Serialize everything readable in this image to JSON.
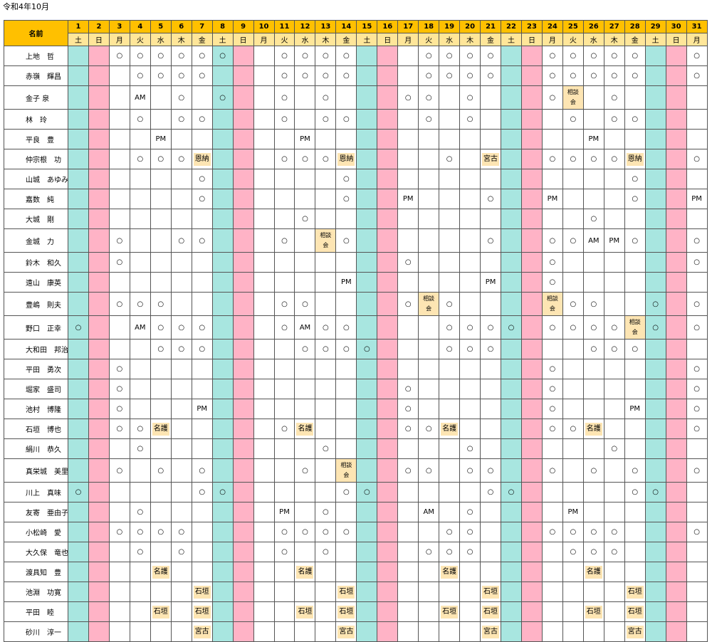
{
  "title": "令和4年10月",
  "header": {
    "name_label": "名前"
  },
  "days": [
    "1",
    "2",
    "3",
    "4",
    "5",
    "6",
    "7",
    "8",
    "9",
    "10",
    "11",
    "12",
    "13",
    "14",
    "15",
    "16",
    "17",
    "18",
    "19",
    "20",
    "21",
    "22",
    "23",
    "24",
    "25",
    "26",
    "27",
    "28",
    "29",
    "30",
    "31"
  ],
  "weekdays": [
    "土",
    "日",
    "月",
    "火",
    "水",
    "木",
    "金",
    "土",
    "日",
    "月",
    "火",
    "水",
    "木",
    "金",
    "土",
    "日",
    "月",
    "火",
    "水",
    "木",
    "金",
    "土",
    "日",
    "月",
    "火",
    "水",
    "木",
    "金",
    "土",
    "日",
    "月"
  ],
  "colors": {
    "saturday": "#a8e6e0",
    "sunday": "#ffb3c6",
    "header_day": "#ffc000",
    "header_dow": "#ffe699",
    "header_name": "#9dc3e6",
    "badge": "#fde5b3"
  },
  "rows": [
    {
      "name": "上地　哲",
      "cells": [
        "",
        "",
        "○",
        "○",
        "○",
        "○",
        "○",
        "○",
        "",
        "",
        "○",
        "○",
        "○",
        "○",
        "",
        "",
        "",
        "○",
        "○",
        "○",
        "○",
        "",
        "",
        "○",
        "○",
        "○",
        "○",
        "○",
        "",
        "",
        "○"
      ]
    },
    {
      "name": "赤嶺　輝昌",
      "cells": [
        "",
        "",
        "",
        "○",
        "○",
        "○",
        "○",
        "",
        "",
        "",
        "○",
        "○",
        "○",
        "○",
        "",
        "",
        "",
        "○",
        "○",
        "○",
        "○",
        "",
        "",
        "○",
        "○",
        "○",
        "○",
        "○",
        "",
        "",
        "○"
      ]
    },
    {
      "name": "金子 泉",
      "cells": [
        "",
        "",
        "",
        "AM",
        "",
        "○",
        "",
        "○",
        "",
        "",
        "○",
        "",
        "○",
        "",
        "",
        "",
        "○",
        "○",
        "",
        "○",
        "",
        "",
        "",
        "○",
        "相談会",
        "",
        "○",
        "",
        "",
        "",
        ""
      ]
    },
    {
      "name": "林　玲",
      "cells": [
        "",
        "",
        "",
        "○",
        "",
        "○",
        "○",
        "",
        "",
        "",
        "○",
        "",
        "○",
        "○",
        "",
        "",
        "",
        "○",
        "",
        "○",
        "",
        "",
        "",
        "",
        "○",
        "",
        "○",
        "○",
        "",
        "",
        ""
      ]
    },
    {
      "name": "平良　豊",
      "cells": [
        "",
        "",
        "",
        "",
        "PM",
        "",
        "",
        "",
        "",
        "",
        "",
        "PM",
        "",
        "",
        "",
        "",
        "",
        "",
        "",
        "",
        "",
        "",
        "",
        "",
        "",
        "PM",
        "",
        "",
        "",
        "",
        ""
      ]
    },
    {
      "name": "仲宗根　功",
      "cells": [
        "",
        "",
        "",
        "○",
        "○",
        "○",
        "恩納",
        "",
        "",
        "",
        "○",
        "○",
        "○",
        "恩納",
        "",
        "",
        "",
        "",
        "○",
        "",
        "宮古",
        "",
        "",
        "○",
        "○",
        "○",
        "○",
        "恩納",
        "",
        "",
        "○"
      ]
    },
    {
      "name": "山城　あゆみ",
      "cells": [
        "",
        "",
        "",
        "",
        "",
        "",
        "○",
        "",
        "",
        "",
        "",
        "",
        "",
        "○",
        "",
        "",
        "",
        "",
        "",
        "",
        "",
        "",
        "",
        "",
        "",
        "",
        "",
        "○",
        "",
        "",
        ""
      ]
    },
    {
      "name": "嘉数　純",
      "cells": [
        "",
        "",
        "",
        "",
        "",
        "",
        "○",
        "",
        "",
        "",
        "",
        "",
        "",
        "○",
        "",
        "",
        "PM",
        "",
        "",
        "",
        "○",
        "",
        "",
        "PM",
        "",
        "",
        "",
        "○",
        "",
        "",
        "PM"
      ]
    },
    {
      "name": "大城　剛",
      "cells": [
        "",
        "",
        "",
        "",
        "",
        "",
        "",
        "",
        "",
        "",
        "",
        "○",
        "",
        "",
        "",
        "",
        "",
        "",
        "",
        "",
        "",
        "",
        "",
        "",
        "",
        "○",
        "",
        "",
        "",
        "",
        ""
      ]
    },
    {
      "name": "金城　力",
      "cells": [
        "",
        "",
        "○",
        "",
        "",
        "○",
        "○",
        "",
        "",
        "",
        "○",
        "",
        "相談会",
        "○",
        "",
        "",
        "",
        "",
        "",
        "",
        "○",
        "",
        "",
        "○",
        "○",
        "AM",
        "PM",
        "○",
        "",
        "",
        "○"
      ]
    },
    {
      "name": "鈴木　和久",
      "cells": [
        "",
        "",
        "○",
        "",
        "",
        "",
        "",
        "",
        "",
        "",
        "",
        "",
        "",
        "",
        "",
        "",
        "○",
        "",
        "",
        "",
        "",
        "",
        "",
        "○",
        "",
        "",
        "",
        "",
        "",
        "",
        "○"
      ]
    },
    {
      "name": "遠山　康英",
      "cells": [
        "",
        "",
        "",
        "",
        "",
        "",
        "",
        "",
        "",
        "",
        "",
        "",
        "",
        "PM",
        "",
        "",
        "",
        "",
        "",
        "",
        "PM",
        "",
        "",
        "○",
        "",
        "",
        "",
        "",
        "",
        "",
        ""
      ]
    },
    {
      "name": "豊嶋　則夫",
      "cells": [
        "",
        "",
        "○",
        "○",
        "○",
        "",
        "",
        "",
        "",
        "",
        "○",
        "○",
        "",
        "",
        "",
        "",
        "○",
        "相談会",
        "○",
        "",
        "",
        "",
        "",
        "相談会",
        "○",
        "○",
        "",
        "",
        "○",
        "",
        "○"
      ]
    },
    {
      "name": "野口　正幸",
      "cells": [
        "○",
        "",
        "",
        "AM",
        "○",
        "○",
        "○",
        "",
        "",
        "",
        "○",
        "AM",
        "○",
        "○",
        "",
        "",
        "",
        "",
        "○",
        "○",
        "○",
        "○",
        "",
        "○",
        "○",
        "○",
        "○",
        "相談会",
        "○",
        "",
        "○"
      ]
    },
    {
      "name": "大和田　邦治",
      "cells": [
        "",
        "",
        "",
        "",
        "○",
        "○",
        "○",
        "",
        "",
        "",
        "",
        "○",
        "○",
        "○",
        "○",
        "",
        "",
        "",
        "○",
        "○",
        "○",
        "",
        "",
        "",
        "",
        "○",
        "○",
        "○",
        "",
        "",
        ""
      ]
    },
    {
      "name": "平田　勇次",
      "cells": [
        "",
        "",
        "○",
        "",
        "",
        "",
        "",
        "",
        "",
        "",
        "",
        "",
        "",
        "",
        "",
        "",
        "",
        "",
        "",
        "",
        "",
        "",
        "",
        "○",
        "",
        "",
        "",
        "",
        "",
        "",
        "○"
      ]
    },
    {
      "name": "堀家　盛司",
      "cells": [
        "",
        "",
        "○",
        "",
        "",
        "",
        "",
        "",
        "",
        "",
        "",
        "",
        "",
        "",
        "",
        "",
        "○",
        "",
        "",
        "",
        "",
        "",
        "",
        "○",
        "",
        "",
        "",
        "",
        "",
        "",
        "○"
      ]
    },
    {
      "name": "池村　博隆",
      "cells": [
        "",
        "",
        "○",
        "",
        "",
        "",
        "PM",
        "",
        "",
        "",
        "",
        "",
        "",
        "",
        "",
        "",
        "○",
        "",
        "",
        "",
        "",
        "",
        "",
        "○",
        "",
        "",
        "",
        "PM",
        "",
        "",
        "○"
      ]
    },
    {
      "name": "石垣　博也",
      "cells": [
        "",
        "",
        "○",
        "○",
        "名護",
        "",
        "",
        "",
        "",
        "",
        "○",
        "名護",
        "",
        "",
        "",
        "",
        "○",
        "○",
        "名護",
        "",
        "",
        "",
        "",
        "○",
        "○",
        "名護",
        "",
        "",
        "",
        "",
        "○"
      ]
    },
    {
      "name": "絹川　恭久",
      "cells": [
        "",
        "",
        "",
        "○",
        "",
        "",
        "",
        "",
        "",
        "",
        "",
        "",
        "○",
        "",
        "",
        "",
        "",
        "",
        "",
        "○",
        "",
        "",
        "",
        "",
        "",
        "",
        "○",
        "",
        "",
        "",
        ""
      ]
    },
    {
      "name": "真栄城　美里",
      "cells": [
        "",
        "",
        "○",
        "",
        "○",
        "",
        "○",
        "",
        "",
        "",
        "",
        "○",
        "",
        "相談会",
        "",
        "",
        "○",
        "○",
        "",
        "○",
        "○",
        "",
        "",
        "○",
        "",
        "○",
        "",
        "○",
        "",
        "",
        "○"
      ]
    },
    {
      "name": "川上　真味",
      "cells": [
        "○",
        "",
        "",
        "",
        "",
        "",
        "○",
        "○",
        "",
        "",
        "",
        "",
        "",
        "○",
        "○",
        "",
        "",
        "",
        "",
        "",
        "○",
        "○",
        "",
        "",
        "",
        "",
        "",
        "○",
        "○",
        "",
        ""
      ]
    },
    {
      "name": "友寄　亜由子",
      "cells": [
        "",
        "",
        "",
        "○",
        "",
        "",
        "",
        "",
        "",
        "",
        "PM",
        "",
        "○",
        "",
        "",
        "",
        "",
        "AM",
        "",
        "○",
        "",
        "",
        "",
        "",
        "PM",
        "",
        "",
        "",
        "",
        "",
        ""
      ]
    },
    {
      "name": "小松崎　愛",
      "cells": [
        "",
        "",
        "○",
        "○",
        "○",
        "○",
        "",
        "",
        "",
        "",
        "○",
        "○",
        "○",
        "○",
        "",
        "",
        "",
        "",
        "○",
        "○",
        "",
        "",
        "",
        "○",
        "○",
        "○",
        "○",
        "",
        "",
        "",
        "○"
      ]
    },
    {
      "name": "大久保　竜也",
      "cells": [
        "",
        "",
        "",
        "○",
        "",
        "○",
        "",
        "",
        "",
        "",
        "○",
        "",
        "○",
        "",
        "",
        "",
        "",
        "○",
        "○",
        "○",
        "",
        "",
        "",
        "",
        "○",
        "○",
        "○",
        "",
        "",
        "",
        ""
      ]
    },
    {
      "name": "渡具知　豊",
      "cells": [
        "",
        "",
        "",
        "",
        "名護",
        "",
        "",
        "",
        "",
        "",
        "",
        "名護",
        "",
        "",
        "",
        "",
        "",
        "",
        "名護",
        "",
        "",
        "",
        "",
        "",
        "",
        "名護",
        "",
        "",
        "",
        "",
        ""
      ]
    },
    {
      "name": "池淵　功寛",
      "cells": [
        "",
        "",
        "",
        "",
        "",
        "",
        "石垣",
        "",
        "",
        "",
        "",
        "",
        "",
        "石垣",
        "",
        "",
        "",
        "",
        "",
        "",
        "石垣",
        "",
        "",
        "",
        "",
        "",
        "",
        "石垣",
        "",
        "",
        ""
      ]
    },
    {
      "name": "平田　睦",
      "cells": [
        "",
        "",
        "",
        "",
        "石垣",
        "",
        "石垣",
        "",
        "",
        "",
        "",
        "石垣",
        "",
        "石垣",
        "",
        "",
        "",
        "",
        "石垣",
        "",
        "石垣",
        "",
        "",
        "",
        "",
        "石垣",
        "",
        "石垣",
        "",
        "",
        ""
      ]
    },
    {
      "name": "砂川　淳一",
      "cells": [
        "",
        "",
        "",
        "",
        "",
        "",
        "宮古",
        "",
        "",
        "",
        "",
        "",
        "",
        "宮古",
        "",
        "",
        "",
        "",
        "",
        "",
        "宮古",
        "",
        "",
        "",
        "",
        "",
        "",
        "宮古",
        "",
        "",
        ""
      ]
    }
  ]
}
